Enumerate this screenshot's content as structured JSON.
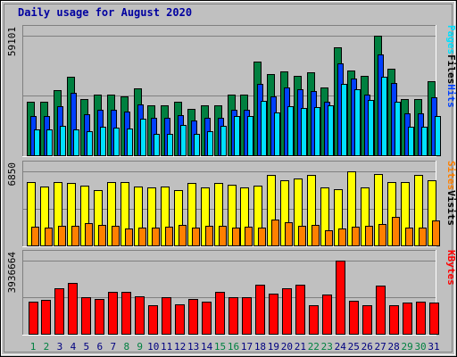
{
  "title": "Daily usage for August 2020",
  "colors": {
    "hits": "#008040",
    "files": "#0040ff",
    "pages": "#00e0ff",
    "visits": "#ffff00",
    "sites": "#ff8000",
    "kbytes": "#ff0000",
    "weekend": "#008040",
    "weekday": "#000080"
  },
  "chart_data": [
    {
      "type": "bar",
      "name": "hits-files-pages",
      "ytick": "59101",
      "legend": [
        "Pages",
        "Files",
        "Hits"
      ],
      "ylim": [
        0,
        59101
      ],
      "categories": [
        "1",
        "2",
        "3",
        "4",
        "5",
        "6",
        "7",
        "8",
        "9",
        "10",
        "11",
        "12",
        "13",
        "14",
        "15",
        "16",
        "17",
        "18",
        "19",
        "20",
        "21",
        "22",
        "23",
        "24",
        "25",
        "26",
        "27",
        "28",
        "29",
        "30",
        "31"
      ],
      "series": [
        {
          "name": "Hits",
          "values": [
            26500,
            26500,
            32400,
            38700,
            27600,
            30200,
            30200,
            29100,
            32900,
            24900,
            24900,
            26500,
            22900,
            24900,
            24900,
            30200,
            30200,
            46200,
            40100,
            41500,
            39300,
            41200,
            33300,
            53500,
            41800,
            39300,
            59101,
            42900,
            27600,
            27600,
            36700
          ]
        },
        {
          "name": "Files",
          "values": [
            19400,
            19400,
            24300,
            30700,
            20200,
            22500,
            22500,
            21700,
            25100,
            18500,
            18500,
            19700,
            17000,
            18500,
            18500,
            22500,
            22500,
            35500,
            29300,
            33500,
            32700,
            31900,
            26300,
            45300,
            37900,
            30100,
            49900,
            35900,
            20600,
            20600,
            28800
          ]
        },
        {
          "name": "Pages",
          "values": [
            12800,
            12800,
            14400,
            13000,
            11800,
            14200,
            13500,
            13400,
            18300,
            10800,
            10800,
            14800,
            10800,
            12000,
            14400,
            19300,
            19300,
            26800,
            21200,
            24200,
            23500,
            23700,
            24700,
            35300,
            32800,
            27200,
            39000,
            26400,
            14200,
            14200,
            19500
          ]
        }
      ]
    },
    {
      "type": "bar",
      "name": "visits-sites",
      "ytick": "6850",
      "legend": [
        "Sites",
        "Visits"
      ],
      "ylim": [
        0,
        6850
      ],
      "categories": [
        "1",
        "2",
        "3",
        "4",
        "5",
        "6",
        "7",
        "8",
        "9",
        "10",
        "11",
        "12",
        "13",
        "14",
        "15",
        "16",
        "17",
        "18",
        "19",
        "20",
        "21",
        "22",
        "23",
        "24",
        "25",
        "26",
        "27",
        "28",
        "29",
        "30",
        "31"
      ],
      "series": [
        {
          "name": "Visits",
          "values": [
            5850,
            5450,
            5850,
            5800,
            5500,
            5150,
            5850,
            5850,
            5430,
            5370,
            5430,
            5080,
            5810,
            5360,
            5810,
            5650,
            5370,
            5530,
            6550,
            6050,
            6200,
            6550,
            5360,
            5230,
            6850,
            5360,
            6600,
            5900,
            5880,
            6500,
            6050
          ]
        },
        {
          "name": "Sites",
          "values": [
            1720,
            1640,
            1790,
            1850,
            2060,
            1920,
            1790,
            1570,
            1640,
            1640,
            1770,
            1920,
            1630,
            1840,
            1790,
            1640,
            1710,
            1690,
            2400,
            2130,
            1840,
            1930,
            1440,
            1560,
            1730,
            1840,
            2010,
            2620,
            1640,
            1690,
            2290
          ]
        }
      ]
    },
    {
      "type": "bar",
      "name": "kbytes",
      "ytick": "3936664",
      "legend": [
        "KBytes"
      ],
      "ylim": [
        0,
        3936664
      ],
      "categories": [
        "1",
        "2",
        "3",
        "4",
        "5",
        "6",
        "7",
        "8",
        "9",
        "10",
        "11",
        "12",
        "13",
        "14",
        "15",
        "16",
        "17",
        "18",
        "19",
        "20",
        "21",
        "22",
        "23",
        "24",
        "25",
        "26",
        "27",
        "28",
        "29",
        "30",
        "31"
      ],
      "series": [
        {
          "name": "KBytes",
          "values": [
            1740000,
            1810000,
            2460000,
            2760000,
            1980000,
            1880000,
            2240000,
            2240000,
            2040000,
            1550000,
            1950000,
            1580000,
            1880000,
            1720000,
            2240000,
            1980000,
            1980000,
            2650000,
            2140000,
            2460000,
            2650000,
            1560000,
            2110000,
            3936664,
            1780000,
            1560000,
            2590000,
            1560000,
            1700000,
            1740000,
            1660000
          ]
        }
      ]
    }
  ],
  "weekend_days": [
    1,
    2,
    8,
    9,
    15,
    16,
    22,
    23,
    29,
    30
  ]
}
